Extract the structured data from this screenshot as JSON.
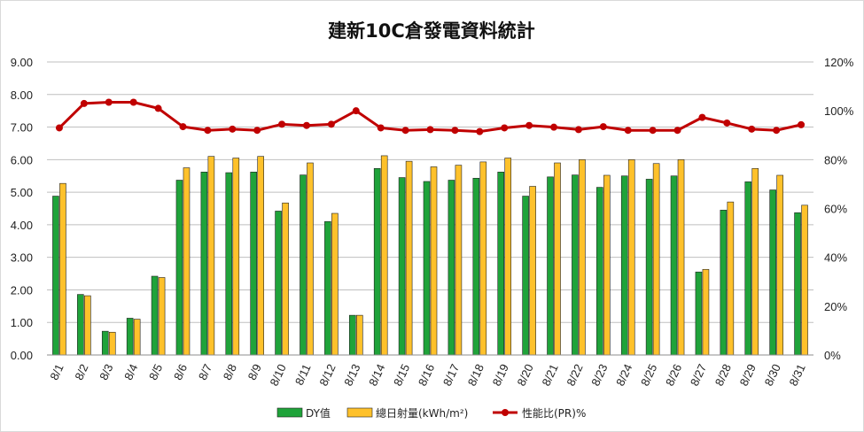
{
  "chart_data": {
    "type": "bar",
    "title": "建新10C倉發電資料統計",
    "categories": [
      "8/1",
      "8/2",
      "8/3",
      "8/4",
      "8/5",
      "8/6",
      "8/7",
      "8/8",
      "8/9",
      "8/10",
      "8/11",
      "8/12",
      "8/13",
      "8/14",
      "8/15",
      "8/16",
      "8/17",
      "8/18",
      "8/19",
      "8/20",
      "8/21",
      "8/22",
      "8/23",
      "8/24",
      "8/25",
      "8/26",
      "8/27",
      "8/28",
      "8/29",
      "8/30",
      "8/31"
    ],
    "series": [
      {
        "name": "DY值",
        "type": "bar",
        "axis": "left",
        "color": "#1fa33a",
        "values": [
          4.88,
          1.86,
          0.73,
          1.13,
          2.42,
          5.37,
          5.62,
          5.6,
          5.62,
          4.42,
          5.53,
          4.1,
          1.22,
          5.73,
          5.45,
          5.33,
          5.37,
          5.43,
          5.62,
          4.88,
          5.47,
          5.53,
          5.15,
          5.5,
          5.4,
          5.5,
          2.55,
          4.45,
          5.32,
          5.07,
          4.37
        ]
      },
      {
        "name": "總日射量(kWh/m²)",
        "type": "bar",
        "axis": "left",
        "color": "#fec12b",
        "values": [
          5.27,
          1.82,
          0.7,
          1.1,
          2.38,
          5.75,
          6.1,
          6.05,
          6.1,
          4.67,
          5.9,
          4.35,
          1.22,
          6.12,
          5.95,
          5.78,
          5.83,
          5.93,
          6.05,
          5.18,
          5.9,
          6.0,
          5.52,
          6.0,
          5.88,
          6.0,
          2.63,
          4.7,
          5.73,
          5.52,
          4.6
        ]
      },
      {
        "name": "性能比(PR)%",
        "type": "line",
        "axis": "right",
        "color": "#c00000",
        "values": [
          93,
          103,
          103.5,
          103.5,
          101,
          93.5,
          92,
          92.5,
          92,
          94.5,
          94,
          94.5,
          100,
          93,
          92,
          92.3,
          92,
          91.5,
          93,
          94,
          93.3,
          92.3,
          93.5,
          92,
          92,
          92,
          97.3,
          95,
          92.5,
          92,
          94.3
        ]
      }
    ],
    "y_left": {
      "min": 0,
      "max": 9,
      "ticks": [
        "0.00",
        "1.00",
        "2.00",
        "3.00",
        "4.00",
        "5.00",
        "6.00",
        "7.00",
        "8.00",
        "9.00"
      ]
    },
    "y_right": {
      "min": 0,
      "max": 120,
      "ticks": [
        "0%",
        "20%",
        "40%",
        "60%",
        "80%",
        "100%",
        "120%"
      ]
    },
    "grid": true,
    "legend_position": "bottom"
  }
}
